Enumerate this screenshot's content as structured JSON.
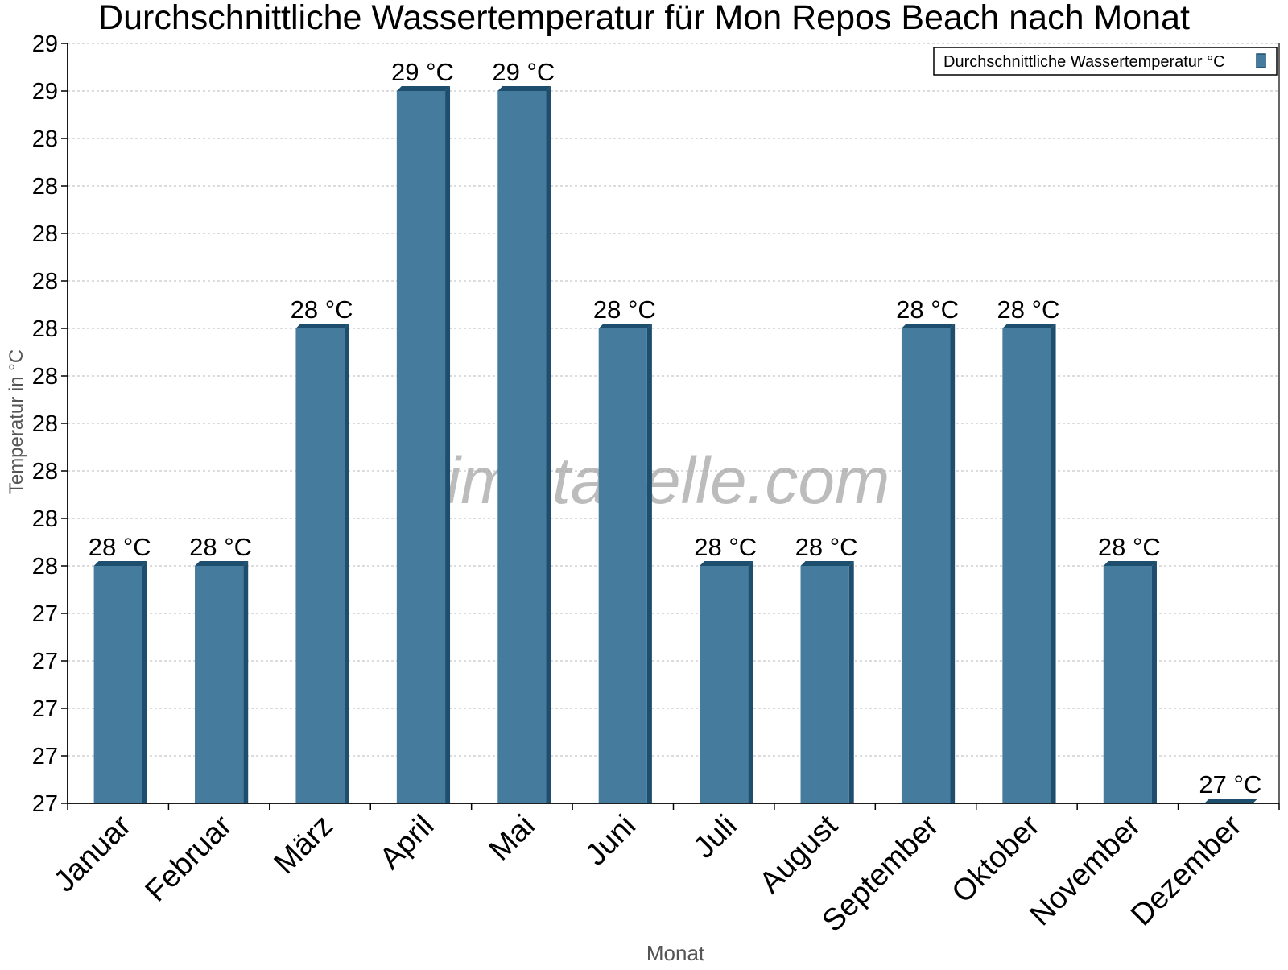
{
  "chart_data": {
    "type": "bar",
    "title": "Durchschnittliche Wassertemperatur für Mon Repos Beach nach Monat",
    "xlabel": "Monat",
    "ylabel": "Temperatur in °C",
    "categories": [
      "Januar",
      "Februar",
      "März",
      "April",
      "Mai",
      "Juni",
      "Juli",
      "August",
      "September",
      "Oktober",
      "November",
      "Dezember"
    ],
    "series": [
      {
        "name": "Durchschnittliche Wassertemperatur °C",
        "values": [
          27.5,
          27.5,
          28.0,
          28.5,
          28.5,
          28.0,
          27.5,
          27.5,
          28.0,
          28.0,
          27.5,
          27.0
        ],
        "labels": [
          "28 °C",
          "28 °C",
          "28 °C",
          "29 °C",
          "29 °C",
          "28 °C",
          "28 °C",
          "28 °C",
          "28 °C",
          "28 °C",
          "28 °C",
          "27 °C"
        ]
      }
    ],
    "ylim": [
      27.0,
      28.6
    ],
    "yticks": [
      27.0,
      27.1,
      27.2,
      27.3,
      27.4,
      27.5,
      27.6,
      27.7,
      27.8,
      27.9,
      28.0,
      28.1,
      28.2,
      28.3,
      28.4,
      28.5,
      28.6
    ],
    "ytick_labels": [
      "27",
      "27",
      "27",
      "27",
      "27",
      "28",
      "28",
      "28",
      "28",
      "28",
      "28",
      "28",
      "28",
      "28",
      "28",
      "29",
      "29"
    ],
    "grid": true,
    "legend_position": "top-right",
    "bar_color": "#457b9d",
    "bar_edge_color": "#1d4e6e",
    "watermark": "klimatabelle.com"
  }
}
